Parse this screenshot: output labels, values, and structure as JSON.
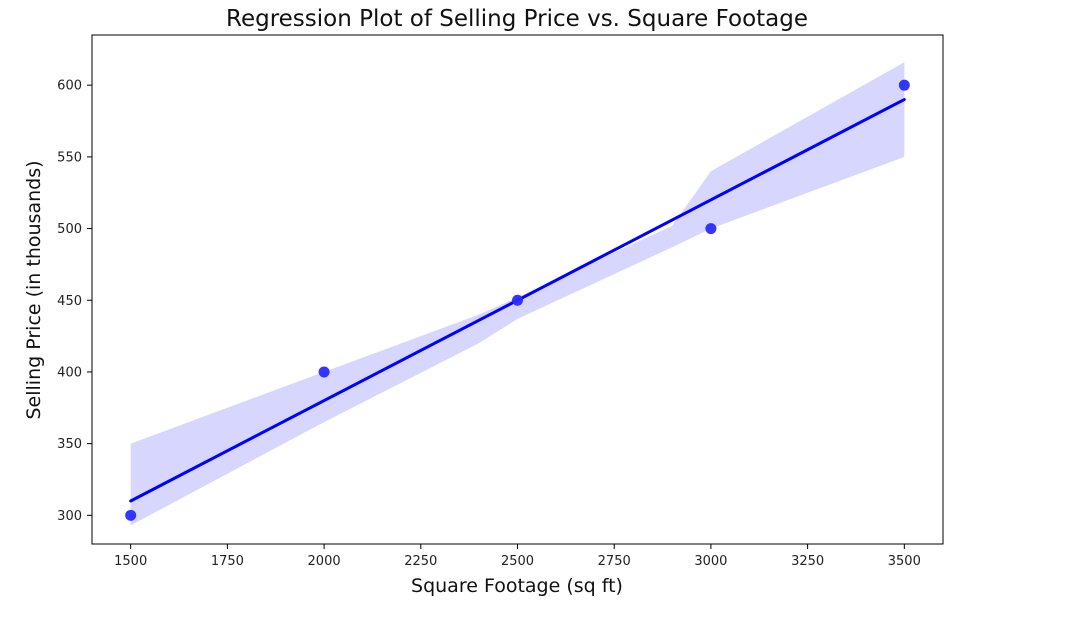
{
  "chart_data": {
    "type": "scatter",
    "title": "Regression Plot of Selling Price vs. Square Footage",
    "xlabel": "Square Footage (sq ft)",
    "ylabel": "Selling Price (in thousands)",
    "xlim": [
      1400,
      3600
    ],
    "ylim": [
      280,
      635
    ],
    "x_ticks": [
      1500,
      1750,
      2000,
      2250,
      2500,
      2750,
      3000,
      3250,
      3500
    ],
    "y_ticks": [
      300,
      350,
      400,
      450,
      500,
      550,
      600
    ],
    "grid": false,
    "points": {
      "x": [
        1500,
        2000,
        2500,
        3000,
        3500
      ],
      "y": [
        300,
        400,
        450,
        500,
        600
      ]
    },
    "regression": {
      "x": [
        1500,
        3500
      ],
      "y": [
        310,
        590
      ]
    },
    "confidence_band": {
      "x": [
        1500,
        2000,
        2400,
        2500,
        2900,
        3000,
        3500
      ],
      "upper": [
        350,
        400,
        440,
        452,
        502,
        540,
        616
      ],
      "lower": [
        293,
        365,
        420,
        437,
        487,
        500,
        550
      ]
    },
    "colors": {
      "points": "#2a2aff",
      "line": "#0000ff",
      "band": "#d6d6ff"
    }
  }
}
